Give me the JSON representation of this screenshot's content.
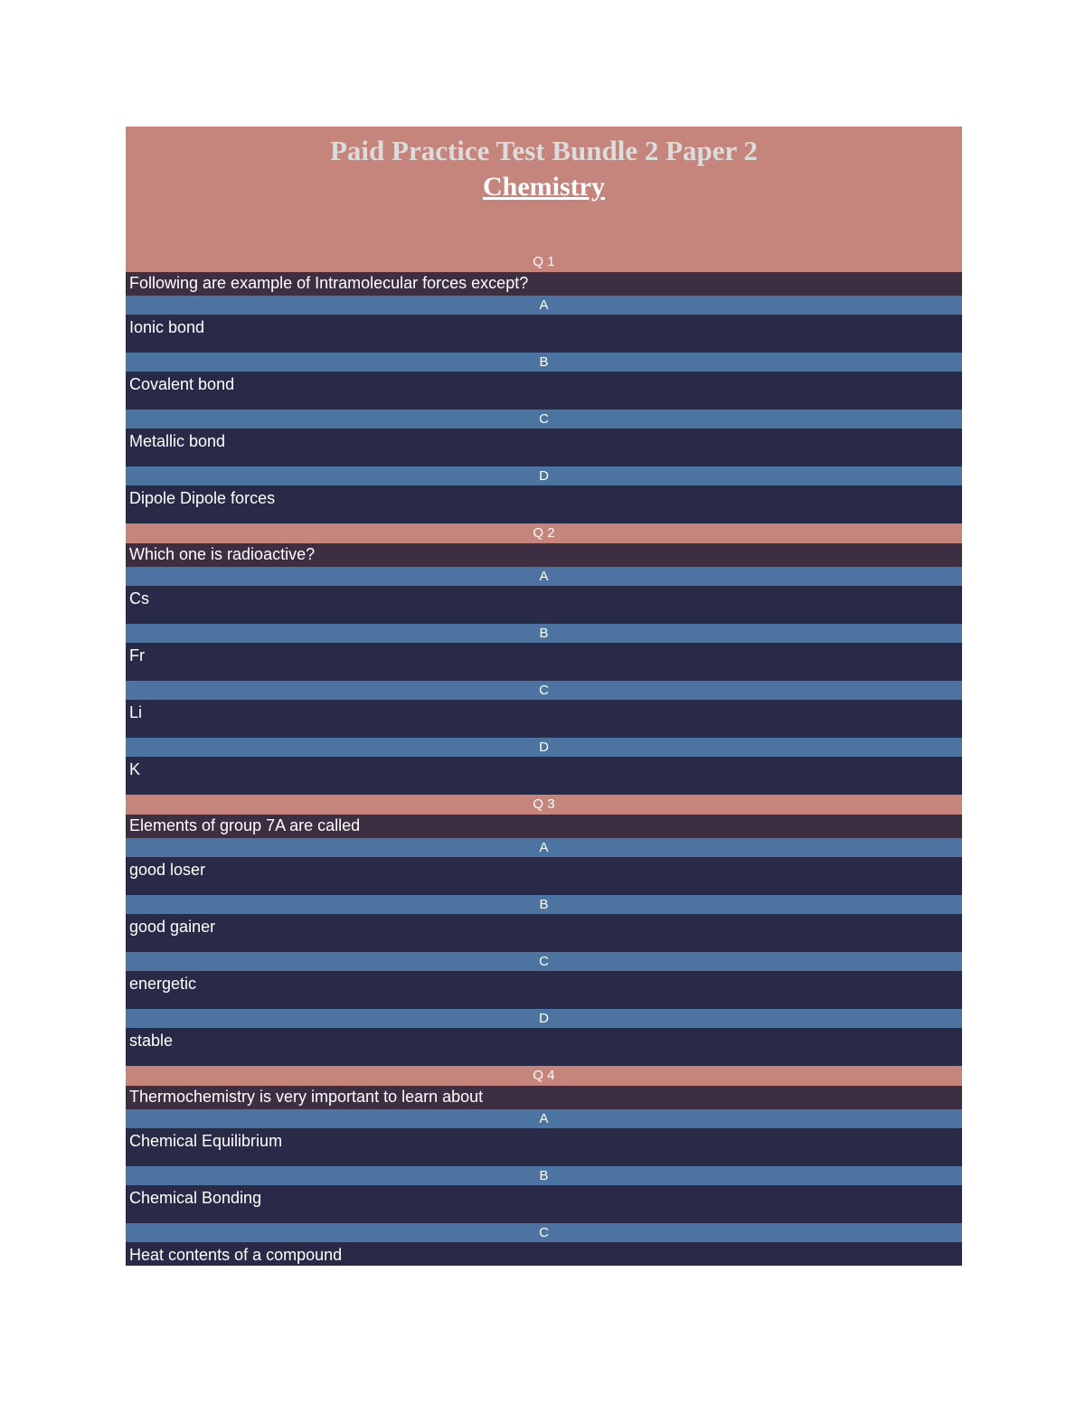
{
  "page": {
    "title": "Paid Practice Test Bundle 2 Paper 2",
    "subtitle": "Chemistry"
  },
  "colors": {
    "header_bg": "#c5857c",
    "question_row_bg": "#3d2e42",
    "option_letter_bg": "#4d73a0",
    "answer_row_bg": "#282a47",
    "title_text": "#dcdcdc",
    "body_text": "#ffffff"
  },
  "questions": [
    {
      "label": "Q 1",
      "question": "Following are example of Intramolecular forces except?",
      "options": [
        {
          "letter": "A",
          "text": "Ionic bond"
        },
        {
          "letter": "B",
          "text": "Covalent bond"
        },
        {
          "letter": "C",
          "text": "Metallic bond"
        },
        {
          "letter": "D",
          "text": "Dipole Dipole forces"
        }
      ]
    },
    {
      "label": "Q 2",
      "question": "Which one is radioactive?",
      "options": [
        {
          "letter": "A",
          "text": "Cs"
        },
        {
          "letter": "B",
          "text": "Fr"
        },
        {
          "letter": "C",
          "text": "Li"
        },
        {
          "letter": "D",
          "text": "K"
        }
      ]
    },
    {
      "label": "Q 3",
      "question": "Elements of group 7A are called",
      "options": [
        {
          "letter": "A",
          "text": "good loser"
        },
        {
          "letter": "B",
          "text": "good gainer"
        },
        {
          "letter": "C",
          "text": "energetic"
        },
        {
          "letter": "D",
          "text": "stable"
        }
      ]
    },
    {
      "label": "Q 4",
      "question": "Thermochemistry is very important to learn about",
      "options": [
        {
          "letter": "A",
          "text": "Chemical Equilibrium"
        },
        {
          "letter": "B",
          "text": "Chemical Bonding"
        },
        {
          "letter": "C",
          "text": "Heat contents of a compound"
        }
      ]
    }
  ]
}
